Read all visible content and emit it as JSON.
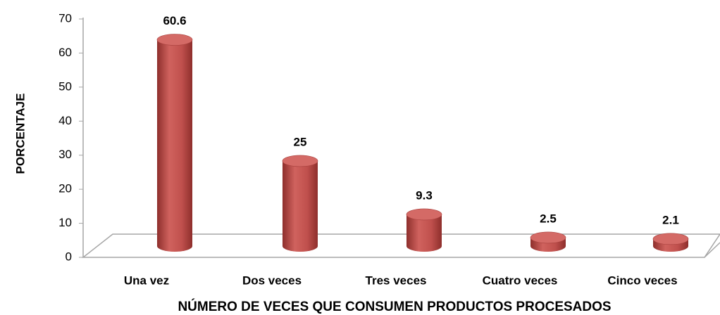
{
  "chart_data": {
    "type": "bar",
    "x_label": "NÚMERO DE VECES QUE CONSUMEN PRODUCTOS PROCESADOS",
    "y_label": "PORCENTAJE",
    "categories": [
      "Una vez",
      "Dos veces",
      "Tres veces",
      "Cuatro veces",
      "Cinco veces"
    ],
    "values": [
      60.6,
      25,
      9.3,
      2.5,
      2.1
    ],
    "color": "#c0504d",
    "ylim": [
      0,
      70
    ],
    "yticks": [
      0,
      10,
      20,
      30,
      40,
      50,
      60,
      70
    ],
    "grid": false
  }
}
